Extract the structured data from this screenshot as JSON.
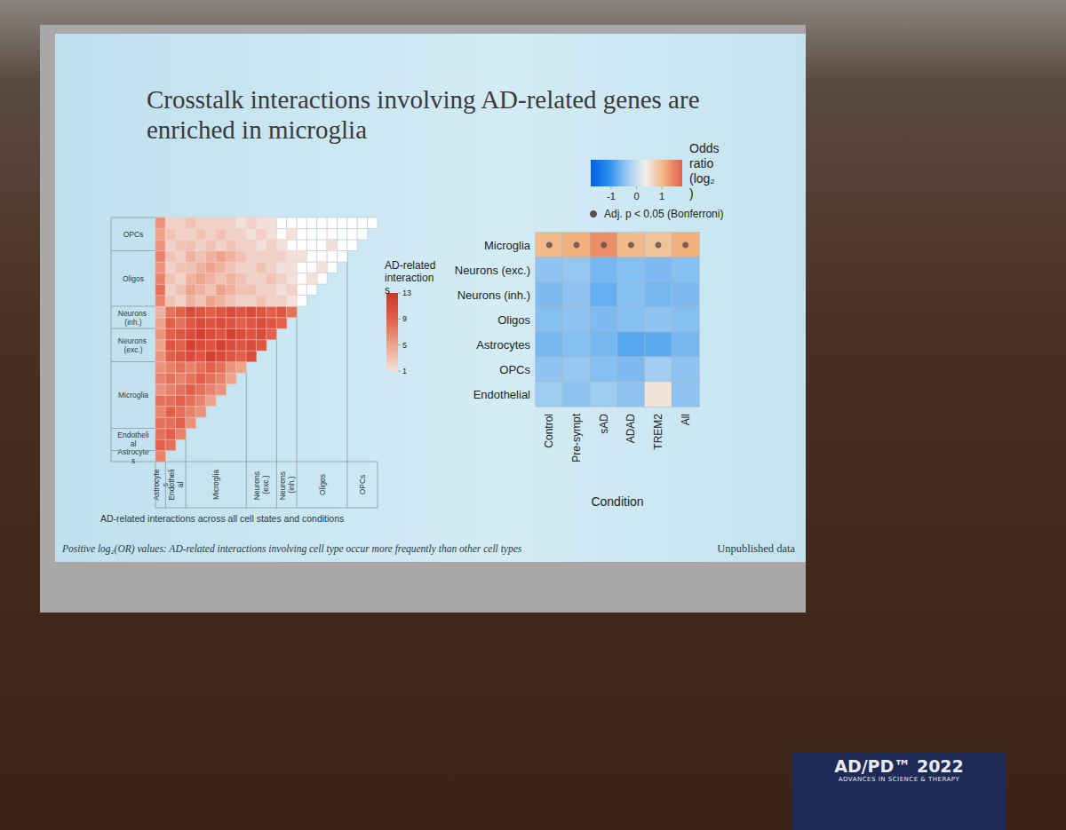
{
  "slide": {
    "title": "Crosstalk interactions involving AD-related genes are enriched in microglia",
    "footnote": "Positive log₂(OR) values: AD-related interactions involving cell type occur more frequently than other cell types",
    "note": "Unpublished data",
    "venue": {
      "name": "AD/PD™ 2022",
      "tagline": "ADVANCES IN SCIENCE & THERAPY"
    }
  },
  "chart_data": [
    {
      "type": "heatmap",
      "caption": "AD-related interactions across all cell states and conditions",
      "groups": [
        {
          "label": "Astrocytes",
          "size": 1
        },
        {
          "label": "Endothelial",
          "size": 2
        },
        {
          "label": "Microglia",
          "size": 6
        },
        {
          "label": "Neurons (exc.)",
          "size": 3
        },
        {
          "label": "Neurons (inh.)",
          "size": 2
        },
        {
          "label": "Oligos",
          "size": 5
        },
        {
          "label": "OPCs",
          "size": 3
        }
      ],
      "cells": [
        [
          7
        ],
        [
          9,
          8
        ],
        [
          8,
          9,
          7
        ],
        [
          8,
          8,
          9,
          6
        ],
        [
          7,
          9,
          8,
          7,
          6
        ],
        [
          8,
          8,
          9,
          8,
          7,
          5
        ],
        [
          6,
          7,
          8,
          9,
          8,
          7,
          6
        ],
        [
          7,
          8,
          7,
          8,
          9,
          8,
          7,
          5
        ],
        [
          6,
          7,
          8,
          7,
          8,
          9,
          8,
          6,
          5
        ],
        [
          6,
          9,
          10,
          11,
          10,
          12,
          11,
          10,
          9,
          11
        ],
        [
          5,
          10,
          9,
          12,
          11,
          10,
          12,
          11,
          10,
          11,
          10
        ],
        [
          6,
          9,
          10,
          11,
          12,
          11,
          10,
          12,
          11,
          10,
          11,
          9
        ],
        [
          5,
          9,
          8,
          10,
          11,
          10,
          11,
          10,
          9,
          10,
          11,
          10,
          9
        ],
        [
          4,
          8,
          9,
          11,
          10,
          9,
          10,
          11,
          10,
          11,
          10,
          9,
          10,
          8
        ],
        [
          7,
          3,
          2,
          4,
          3,
          5,
          4,
          3,
          2,
          2,
          3,
          2,
          2,
          1,
          null
        ],
        [
          8,
          2,
          3,
          5,
          4,
          3,
          5,
          4,
          3,
          3,
          2,
          2,
          1,
          2,
          null,
          null
        ],
        [
          7,
          3,
          2,
          4,
          5,
          4,
          3,
          4,
          3,
          2,
          2,
          3,
          2,
          1,
          null,
          1,
          null
        ],
        [
          6,
          2,
          3,
          3,
          4,
          5,
          4,
          3,
          2,
          2,
          3,
          2,
          1,
          1,
          null,
          null,
          1,
          null
        ],
        [
          7,
          3,
          2,
          4,
          3,
          4,
          5,
          4,
          3,
          2,
          2,
          2,
          2,
          1,
          1,
          null,
          null,
          null,
          null
        ],
        [
          6,
          2,
          3,
          3,
          2,
          3,
          2,
          3,
          2,
          2,
          1,
          2,
          1,
          null,
          null,
          null,
          null,
          1,
          null,
          null
        ],
        [
          5,
          3,
          2,
          2,
          3,
          2,
          3,
          2,
          2,
          1,
          2,
          1,
          null,
          1,
          null,
          null,
          null,
          null,
          null,
          null,
          null
        ],
        [
          6,
          2,
          2,
          3,
          2,
          2,
          2,
          2,
          1,
          2,
          1,
          1,
          null,
          null,
          null,
          null,
          null,
          null,
          null,
          null,
          null,
          null
        ]
      ],
      "colorbar": {
        "title": "AD-related interactions",
        "range": [
          1,
          13
        ],
        "ticks": [
          1,
          5,
          9,
          13
        ]
      }
    },
    {
      "type": "heatmap",
      "x_label": "Condition",
      "categories": [
        "Control",
        "Pre-sympt",
        "sAD",
        "ADAD",
        "TREM2",
        "All"
      ],
      "rows": [
        "Microglia",
        "Neurons (exc.)",
        "Neurons (inh.)",
        "Oligos",
        "Astrocytes",
        "OPCs",
        "Endothelial"
      ],
      "values": [
        [
          1.0,
          1.1,
          1.4,
          1.0,
          0.9,
          1.1
        ],
        [
          -0.45,
          -0.4,
          -0.6,
          -0.5,
          -0.55,
          -0.5
        ],
        [
          -0.55,
          -0.45,
          -0.7,
          -0.5,
          -0.6,
          -0.55
        ],
        [
          -0.5,
          -0.45,
          -0.55,
          -0.5,
          -0.45,
          -0.5
        ],
        [
          -0.6,
          -0.5,
          -0.6,
          -0.8,
          -0.75,
          -0.6
        ],
        [
          -0.45,
          -0.4,
          -0.5,
          -0.55,
          -0.3,
          -0.45
        ],
        [
          -0.35,
          -0.45,
          -0.35,
          -0.45,
          0.5,
          -0.45
        ]
      ],
      "significant": [
        [
          true,
          true,
          true,
          true,
          true,
          true
        ],
        [
          false,
          false,
          false,
          false,
          false,
          false
        ],
        [
          false,
          false,
          false,
          false,
          false,
          false
        ],
        [
          false,
          false,
          false,
          false,
          false,
          false
        ],
        [
          false,
          false,
          false,
          false,
          false,
          false
        ],
        [
          false,
          false,
          false,
          false,
          false,
          false
        ],
        [
          false,
          false,
          false,
          false,
          false,
          false
        ]
      ],
      "significance_label": "Adj. p < 0.05 (Bonferroni)",
      "colorbar": {
        "title": "Odds ratio (log₂)",
        "range": [
          -1.8,
          1.8
        ],
        "ticks": [
          -1,
          0,
          1
        ]
      }
    }
  ]
}
